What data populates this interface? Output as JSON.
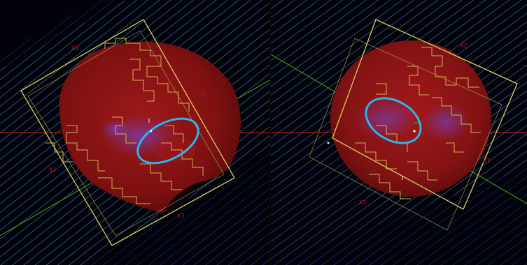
{
  "window": {
    "panels": [
      {
        "id": "left-view",
        "orientation_labels": {
          "top": "X2",
          "side": "Z6",
          "bottom_left": "X1",
          "bottom": "X3"
        }
      },
      {
        "id": "right-view",
        "orientation_labels": {
          "top": "X2",
          "side": "X3",
          "bottom": "X1"
        }
      }
    ]
  },
  "colors": {
    "background": "#02030a",
    "slice_lines": "#3a8fb8",
    "slice_lines_dark": "#1b2f7a",
    "brain_volume": "#8a1212",
    "roi_outline": "#d8c35a",
    "selection_ellipse": "#27b6f0",
    "crosshair_red": "#e01818",
    "crosshair_green": "#3aa020",
    "orientation_text": "#d01010"
  }
}
